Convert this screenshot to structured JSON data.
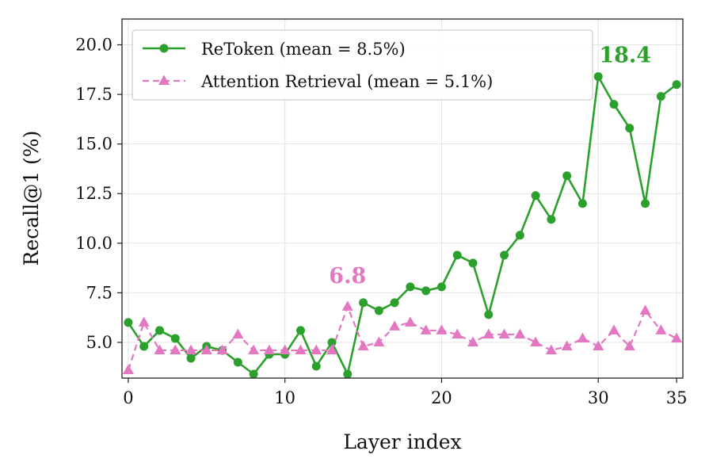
{
  "chart_data": {
    "type": "line",
    "xlabel": "Layer index",
    "ylabel": "Recall@1 (%)",
    "xlim": [
      -0.4,
      35.4
    ],
    "ylim": [
      3.2,
      21.3
    ],
    "xticks": [
      0,
      10,
      20,
      30,
      35
    ],
    "yticks": [
      5.0,
      7.5,
      10.0,
      12.5,
      15.0,
      17.5,
      20.0
    ],
    "ytick_labels": [
      "5.0",
      "7.5",
      "10.0",
      "12.5",
      "15.0",
      "17.5",
      "20.0"
    ],
    "grid": true,
    "legend_position": "top-left",
    "x": [
      0,
      1,
      2,
      3,
      4,
      5,
      6,
      7,
      8,
      9,
      10,
      11,
      12,
      13,
      14,
      15,
      16,
      17,
      18,
      19,
      20,
      21,
      22,
      23,
      24,
      25,
      26,
      27,
      28,
      29,
      30,
      31,
      32,
      33,
      34,
      35
    ],
    "series": [
      {
        "name": "ReToken (mean = 8.5%)",
        "color": "#2ca02c",
        "marker": "circle",
        "linestyle": "solid",
        "values": [
          6.0,
          4.8,
          5.6,
          5.2,
          4.2,
          4.8,
          4.6,
          4.0,
          3.4,
          4.4,
          4.4,
          5.6,
          3.8,
          5.0,
          3.4,
          7.0,
          6.6,
          7.0,
          7.8,
          7.6,
          7.8,
          9.4,
          9.0,
          6.4,
          9.4,
          10.4,
          12.4,
          11.2,
          13.4,
          12.0,
          18.4,
          17.0,
          15.8,
          12.0,
          17.4,
          18.0
        ]
      },
      {
        "name": "Attention Retrieval (mean = 5.1%)",
        "color": "#e377c2",
        "marker": "triangle",
        "linestyle": "dashed",
        "values": [
          3.6,
          6.0,
          4.6,
          4.6,
          4.6,
          4.6,
          4.6,
          5.4,
          4.6,
          4.6,
          4.6,
          4.6,
          4.6,
          4.6,
          6.8,
          4.8,
          5.0,
          5.8,
          6.0,
          5.6,
          5.6,
          5.4,
          5.0,
          5.4,
          5.4,
          5.4,
          5.0,
          4.6,
          4.8,
          5.2,
          4.8,
          5.6,
          4.8,
          6.6,
          5.6,
          5.2
        ]
      }
    ],
    "annotations": [
      {
        "text": "18.4",
        "x": 30,
        "y": 18.4,
        "series": 0
      },
      {
        "text": "6.8",
        "x": 14,
        "y": 6.8,
        "series": 1
      }
    ]
  }
}
